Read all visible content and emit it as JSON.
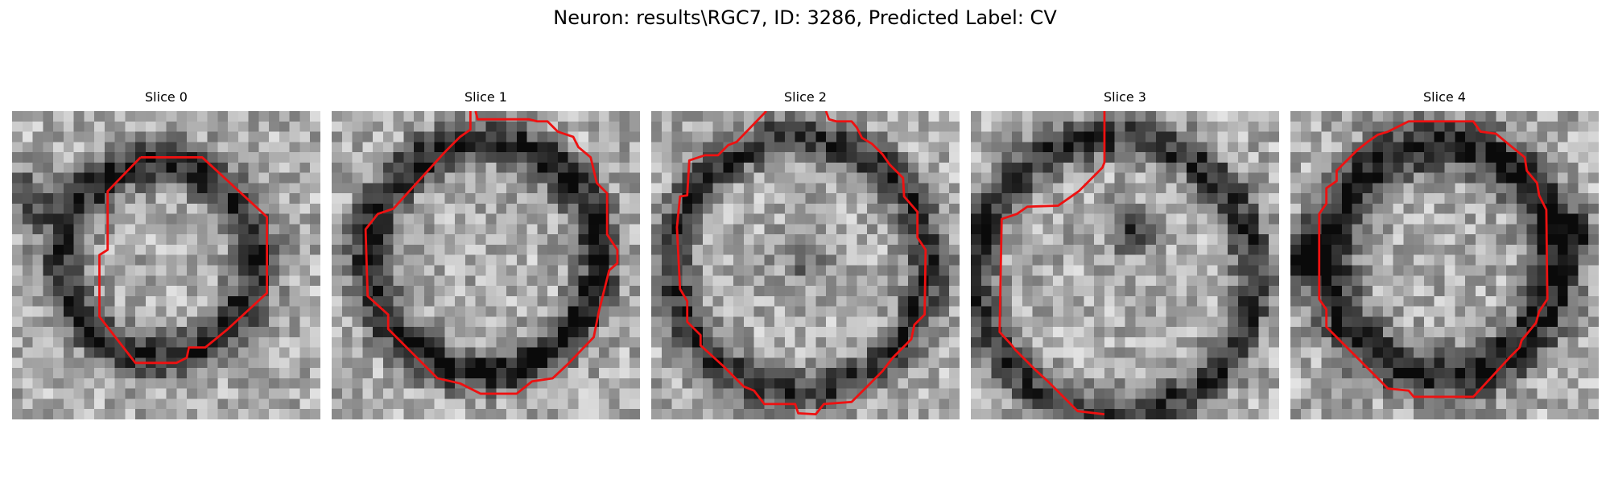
{
  "figure_title": "Neuron: results\\RGC7, ID: 3286, Predicted Label: CV",
  "contour_color": "#ee1111",
  "colormap": "gray",
  "panels": [
    {
      "title": "Slice 0",
      "seed": 11,
      "ring": {
        "cx": 14.2,
        "cy": 14.4,
        "r": 9.4,
        "w": 2.2,
        "dark": 0.55
      },
      "blobs": [
        {
          "x": 1.8,
          "y": 8.5,
          "r": 2.4,
          "d": 0.45
        }
      ],
      "contour": [
        [
          12.5,
          4.5
        ],
        [
          18.5,
          4.5
        ],
        [
          24.8,
          10.3
        ],
        [
          24.8,
          17.7
        ],
        [
          21.0,
          21.2
        ],
        [
          18.8,
          23.0
        ],
        [
          17.2,
          23.0
        ],
        [
          17.0,
          24.0
        ],
        [
          16.0,
          24.5
        ],
        [
          12.0,
          24.5
        ],
        [
          8.5,
          20.0
        ],
        [
          8.5,
          14.0
        ],
        [
          9.3,
          13.5
        ],
        [
          9.3,
          7.8
        ],
        [
          12.5,
          4.5
        ]
      ]
    },
    {
      "title": "Slice 1",
      "seed": 23,
      "ring": {
        "cx": 14.8,
        "cy": 14.2,
        "r": 11.2,
        "w": 2.0,
        "dark": 0.6
      },
      "blobs": [],
      "contour": [
        [
          13.5,
          0.0
        ],
        [
          13.5,
          1.8
        ],
        [
          12.5,
          2.5
        ],
        [
          11.0,
          4.0
        ],
        [
          6.0,
          9.5
        ],
        [
          4.5,
          10.0
        ],
        [
          3.3,
          11.5
        ],
        [
          3.5,
          18.0
        ],
        [
          5.5,
          19.8
        ],
        [
          5.5,
          21.2
        ],
        [
          10.3,
          26.0
        ],
        [
          12.5,
          26.5
        ],
        [
          14.5,
          27.5
        ],
        [
          18.0,
          27.5
        ],
        [
          19.5,
          26.3
        ],
        [
          21.5,
          26.0
        ],
        [
          23.0,
          24.6
        ],
        [
          25.5,
          22.0
        ],
        [
          26.0,
          19.5
        ],
        [
          26.5,
          17.5
        ],
        [
          27.0,
          15.5
        ],
        [
          27.8,
          14.8
        ],
        [
          27.8,
          13.5
        ],
        [
          26.8,
          12.0
        ],
        [
          26.8,
          8.0
        ],
        [
          25.8,
          7.0
        ],
        [
          25.2,
          4.5
        ],
        [
          24.0,
          3.5
        ],
        [
          23.5,
          2.5
        ],
        [
          22.0,
          2.0
        ],
        [
          21.0,
          1.0
        ],
        [
          20.0,
          1.0
        ],
        [
          19.2,
          0.8
        ],
        [
          14.2,
          0.8
        ],
        [
          14.0,
          0.0
        ]
      ]
    },
    {
      "title": "Slice 2",
      "seed": 37,
      "ring": {
        "cx": 14.5,
        "cy": 15.0,
        "r": 12.4,
        "w": 2.0,
        "dark": 0.5
      },
      "blobs": [
        {
          "x": 15.0,
          "y": 14.0,
          "r": 2.5,
          "d": 0.3
        }
      ],
      "contour": [
        [
          11.2,
          0.0
        ],
        [
          8.3,
          3.0
        ],
        [
          7.5,
          3.3
        ],
        [
          6.5,
          4.3
        ],
        [
          5.2,
          4.3
        ],
        [
          3.7,
          4.8
        ],
        [
          3.5,
          8.2
        ],
        [
          2.8,
          8.3
        ],
        [
          2.5,
          11.3
        ],
        [
          2.8,
          17.3
        ],
        [
          3.5,
          18.5
        ],
        [
          3.5,
          20.5
        ],
        [
          4.8,
          21.8
        ],
        [
          4.8,
          22.8
        ],
        [
          7.0,
          24.8
        ],
        [
          9.0,
          26.8
        ],
        [
          10.0,
          27.2
        ],
        [
          11.0,
          28.5
        ],
        [
          14.0,
          28.5
        ],
        [
          14.3,
          29.4
        ],
        [
          16.0,
          29.5
        ],
        [
          16.8,
          28.5
        ],
        [
          19.5,
          28.3
        ],
        [
          20.8,
          27.0
        ],
        [
          22.5,
          25.3
        ],
        [
          23.5,
          24.0
        ],
        [
          25.3,
          22.2
        ],
        [
          25.6,
          20.8
        ],
        [
          26.6,
          19.8
        ],
        [
          26.7,
          13.5
        ],
        [
          25.9,
          12.3
        ],
        [
          25.9,
          9.8
        ],
        [
          24.6,
          8.3
        ],
        [
          24.5,
          6.5
        ],
        [
          23.2,
          5.2
        ],
        [
          22.5,
          4.2
        ],
        [
          21.5,
          3.2
        ],
        [
          20.5,
          2.6
        ],
        [
          20.0,
          1.6
        ],
        [
          19.5,
          1.0
        ],
        [
          18.0,
          1.0
        ],
        [
          17.3,
          0.8
        ],
        [
          17.0,
          0.0
        ]
      ]
    },
    {
      "title": "Slice 3",
      "seed": 51,
      "ring": {
        "cx": 14.0,
        "cy": 16.0,
        "r": 13.5,
        "w": 2.0,
        "dark": 0.5
      },
      "blobs": [
        {
          "x": 15.5,
          "y": 11.5,
          "r": 2.2,
          "d": 0.5
        }
      ],
      "contour": [
        [
          13.0,
          0.0
        ],
        [
          13.0,
          5.0
        ],
        [
          12.8,
          5.5
        ],
        [
          10.5,
          7.8
        ],
        [
          8.5,
          9.2
        ],
        [
          5.5,
          9.3
        ],
        [
          4.5,
          10.0
        ],
        [
          3.0,
          10.5
        ],
        [
          2.8,
          21.5
        ],
        [
          4.0,
          22.8
        ],
        [
          4.3,
          23.2
        ],
        [
          6.3,
          25.2
        ],
        [
          7.5,
          26.3
        ],
        [
          9.0,
          27.8
        ],
        [
          10.4,
          29.2
        ],
        [
          13.0,
          29.5
        ]
      ]
    },
    {
      "title": "Slice 4",
      "seed": 67,
      "ring": {
        "cx": 14.8,
        "cy": 14.5,
        "r": 11.2,
        "w": 2.5,
        "dark": 0.6
      },
      "blobs": [
        {
          "x": 1.2,
          "y": 14.0,
          "r": 2.5,
          "d": 0.45
        },
        {
          "x": 28.0,
          "y": 12.0,
          "r": 2.0,
          "d": 0.35
        }
      ],
      "contour": [
        [
          9.5,
          2.0
        ],
        [
          11.5,
          1.0
        ],
        [
          17.8,
          1.0
        ],
        [
          18.5,
          2.0
        ],
        [
          20.0,
          2.2
        ],
        [
          21.2,
          3.2
        ],
        [
          22.8,
          4.5
        ],
        [
          23.0,
          5.8
        ],
        [
          24.0,
          7.0
        ],
        [
          24.2,
          8.2
        ],
        [
          24.9,
          9.6
        ],
        [
          25.0,
          18.3
        ],
        [
          24.2,
          19.5
        ],
        [
          23.9,
          20.6
        ],
        [
          22.5,
          22.3
        ],
        [
          22.3,
          23.0
        ],
        [
          21.3,
          24.0
        ],
        [
          17.8,
          27.8
        ],
        [
          12.0,
          27.8
        ],
        [
          11.5,
          27.2
        ],
        [
          9.5,
          27.0
        ],
        [
          8.0,
          25.5
        ],
        [
          6.5,
          24.0
        ],
        [
          5.0,
          22.5
        ],
        [
          3.5,
          21.0
        ],
        [
          3.5,
          19.3
        ],
        [
          2.8,
          18.3
        ],
        [
          2.8,
          10.0
        ],
        [
          3.5,
          9.0
        ],
        [
          3.5,
          7.5
        ],
        [
          4.5,
          6.8
        ],
        [
          4.5,
          5.8
        ],
        [
          5.5,
          4.8
        ],
        [
          6.5,
          3.8
        ],
        [
          7.5,
          3.0
        ],
        [
          8.5,
          2.3
        ],
        [
          9.5,
          2.0
        ]
      ]
    }
  ]
}
